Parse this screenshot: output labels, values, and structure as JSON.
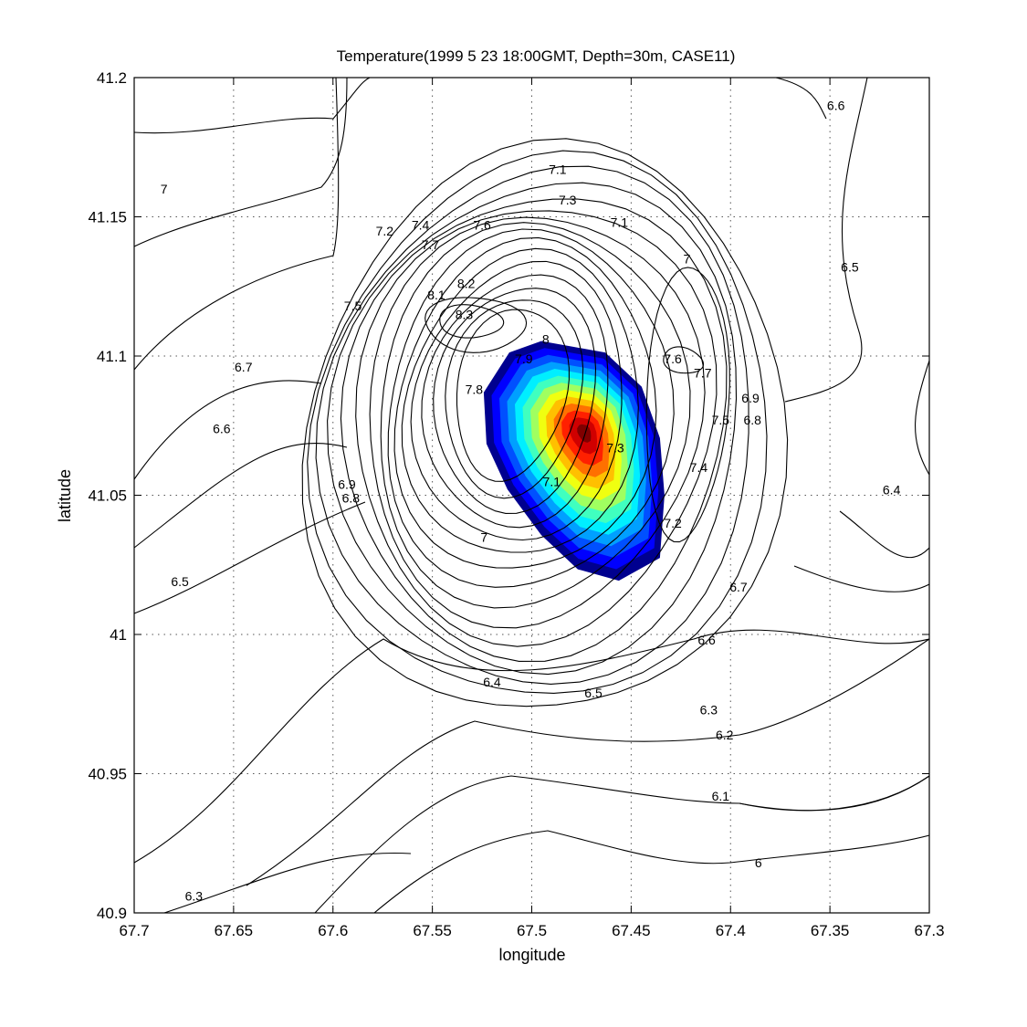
{
  "chart_data": {
    "type": "contour",
    "title": "Temperature(1999   5   23 18:00GMT, Depth=30m, CASE11)",
    "xlabel": "longitude",
    "ylabel": "latitude",
    "xlim": [
      67.7,
      67.3
    ],
    "ylim": [
      40.9,
      41.2
    ],
    "x_reversed": true,
    "grid": true,
    "x_ticks": [
      "67.7",
      "67.65",
      "67.6",
      "67.55",
      "67.5",
      "67.45",
      "67.4",
      "67.35",
      "67.3"
    ],
    "y_ticks": [
      "40.9",
      "40.95",
      "41",
      "41.05",
      "41.1",
      "41.15",
      "41.2"
    ],
    "warm_core": {
      "center_lon": 67.475,
      "center_lat": 41.073,
      "peak": 8.3
    },
    "contour_labels": [
      {
        "text": "6.6",
        "lon": 67.347,
        "lat": 41.19
      },
      {
        "text": "7.1",
        "lon": 67.487,
        "lat": 41.167
      },
      {
        "text": "7",
        "lon": 67.685,
        "lat": 41.16
      },
      {
        "text": "7.3",
        "lon": 67.482,
        "lat": 41.156
      },
      {
        "text": "7.2",
        "lon": 67.574,
        "lat": 41.145
      },
      {
        "text": "7.4",
        "lon": 67.556,
        "lat": 41.147
      },
      {
        "text": "7.6",
        "lon": 67.525,
        "lat": 41.147
      },
      {
        "text": "7.1",
        "lon": 67.456,
        "lat": 41.148
      },
      {
        "text": "7.7",
        "lon": 67.551,
        "lat": 41.14
      },
      {
        "text": "7",
        "lon": 67.422,
        "lat": 41.135
      },
      {
        "text": "6.5",
        "lon": 67.34,
        "lat": 41.132
      },
      {
        "text": "8.2",
        "lon": 67.533,
        "lat": 41.126
      },
      {
        "text": "8.1",
        "lon": 67.548,
        "lat": 41.122
      },
      {
        "text": "7.5",
        "lon": 67.59,
        "lat": 41.118
      },
      {
        "text": "8.3",
        "lon": 67.534,
        "lat": 41.115
      },
      {
        "text": "8",
        "lon": 67.493,
        "lat": 41.106
      },
      {
        "text": "7.9",
        "lon": 67.504,
        "lat": 41.099
      },
      {
        "text": "7.6",
        "lon": 67.429,
        "lat": 41.099
      },
      {
        "text": "6.7",
        "lon": 67.645,
        "lat": 41.096
      },
      {
        "text": "7.7",
        "lon": 67.414,
        "lat": 41.094
      },
      {
        "text": "7.8",
        "lon": 67.529,
        "lat": 41.088
      },
      {
        "text": "6.9",
        "lon": 67.39,
        "lat": 41.085
      },
      {
        "text": "7.5",
        "lon": 67.405,
        "lat": 41.077
      },
      {
        "text": "6.8",
        "lon": 67.389,
        "lat": 41.077
      },
      {
        "text": "6.6",
        "lon": 67.656,
        "lat": 41.074
      },
      {
        "text": "7.3",
        "lon": 67.458,
        "lat": 41.067
      },
      {
        "text": "7.4",
        "lon": 67.416,
        "lat": 41.06
      },
      {
        "text": "6.9",
        "lon": 67.593,
        "lat": 41.054
      },
      {
        "text": "7.1",
        "lon": 67.49,
        "lat": 41.055
      },
      {
        "text": "6.4",
        "lon": 67.319,
        "lat": 41.052
      },
      {
        "text": "6.8",
        "lon": 67.591,
        "lat": 41.049
      },
      {
        "text": "7.2",
        "lon": 67.429,
        "lat": 41.04
      },
      {
        "text": "7",
        "lon": 67.524,
        "lat": 41.035
      },
      {
        "text": "6.5",
        "lon": 67.677,
        "lat": 41.019
      },
      {
        "text": "6.7",
        "lon": 67.396,
        "lat": 41.017
      },
      {
        "text": "6.6",
        "lon": 67.412,
        "lat": 40.998
      },
      {
        "text": "6.4",
        "lon": 67.52,
        "lat": 40.983
      },
      {
        "text": "6.5",
        "lon": 67.469,
        "lat": 40.979
      },
      {
        "text": "6.3",
        "lon": 67.411,
        "lat": 40.973
      },
      {
        "text": "6.2",
        "lon": 67.403,
        "lat": 40.964
      },
      {
        "text": "6.1",
        "lon": 67.405,
        "lat": 40.942
      },
      {
        "text": "6",
        "lon": 67.386,
        "lat": 40.918
      },
      {
        "text": "6.3",
        "lon": 67.67,
        "lat": 40.906
      }
    ],
    "colormap": [
      "#00008f",
      "#0000ff",
      "#0050ff",
      "#00a0ff",
      "#00efff",
      "#40ffbf",
      "#a0ff60",
      "#f0ff10",
      "#ffc000",
      "#ff7000",
      "#ff2000",
      "#d00000",
      "#800000"
    ]
  }
}
